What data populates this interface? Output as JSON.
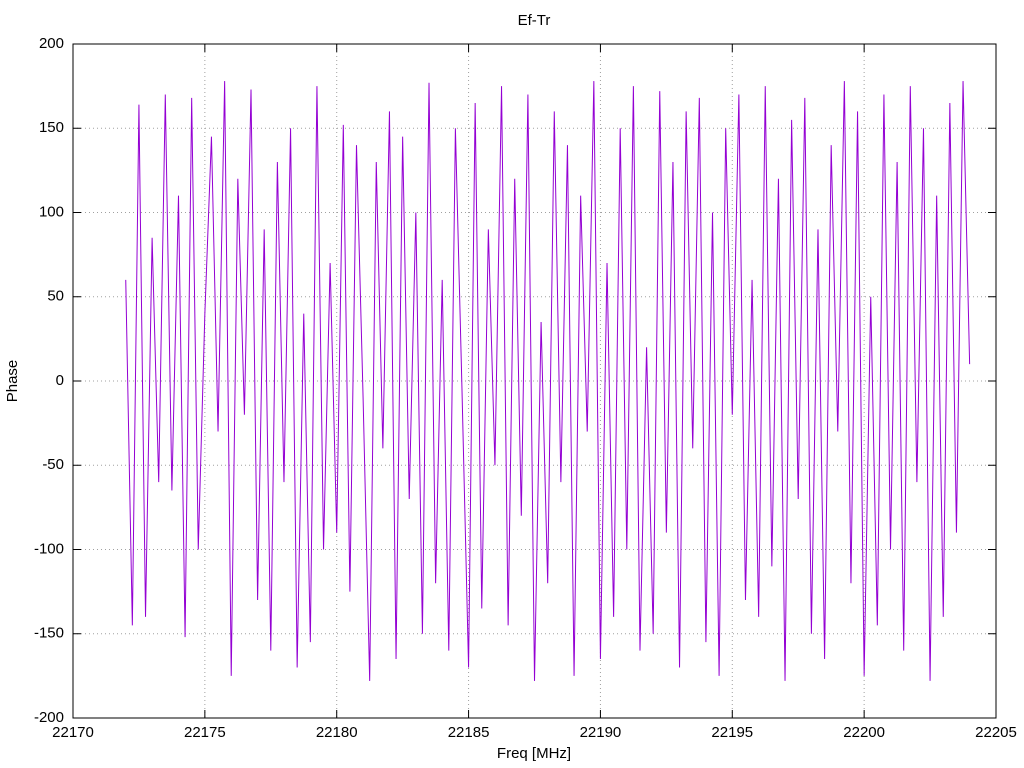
{
  "chart_data": {
    "type": "line",
    "title": "Ef-Tr",
    "x_label": "Freq [MHz]",
    "y_label": "Phase",
    "xlim": [
      22170,
      22205
    ],
    "xticks": [
      22170,
      22175,
      22180,
      22185,
      22190,
      22195,
      22200,
      22205
    ],
    "ylim": [
      -200,
      200
    ],
    "yticks": [
      -200,
      -150,
      -100,
      -50,
      0,
      50,
      100,
      150,
      200
    ],
    "grid": true,
    "x": [
      22172,
      22172.25,
      22172.5,
      22172.75,
      22173,
      22173.25,
      22173.5,
      22173.75,
      22174,
      22174.25,
      22174.5,
      22174.75,
      22175,
      22175.25,
      22175.5,
      22175.75,
      22176,
      22176.25,
      22176.5,
      22176.75,
      22177,
      22177.25,
      22177.5,
      22177.75,
      22178,
      22178.25,
      22178.5,
      22178.75,
      22179,
      22179.25,
      22179.5,
      22179.75,
      22180,
      22180.25,
      22180.5,
      22180.75,
      22181,
      22181.25,
      22181.5,
      22181.75,
      22182,
      22182.25,
      22182.5,
      22182.75,
      22183,
      22183.25,
      22183.5,
      22183.75,
      22184,
      22184.25,
      22184.5,
      22184.75,
      22185,
      22185.25,
      22185.5,
      22185.75,
      22186,
      22186.25,
      22186.5,
      22186.75,
      22187,
      22187.25,
      22187.5,
      22187.75,
      22188,
      22188.25,
      22188.5,
      22188.75,
      22189,
      22189.25,
      22189.5,
      22189.75,
      22190,
      22190.25,
      22190.5,
      22190.75,
      22191,
      22191.25,
      22191.5,
      22191.75,
      22192,
      22192.25,
      22192.5,
      22192.75,
      22193,
      22193.25,
      22193.5,
      22193.75,
      22194,
      22194.25,
      22194.5,
      22194.75,
      22195,
      22195.25,
      22195.5,
      22195.75,
      22196,
      22196.25,
      22196.5,
      22196.75,
      22197,
      22197.25,
      22197.5,
      22197.75,
      22198,
      22198.25,
      22198.5,
      22198.75,
      22199,
      22199.25,
      22199.5,
      22199.75,
      22200,
      22200.25,
      22200.5,
      22200.75,
      22201,
      22201.25,
      22201.5,
      22201.75,
      22202,
      22202.25,
      22202.5,
      22202.75,
      22203,
      22203.25,
      22203.5,
      22203.75,
      22204
    ],
    "series": [
      {
        "color": "#9400d3",
        "values": [
          60,
          -145,
          164,
          -140,
          85,
          -60,
          170,
          -65,
          110,
          -152,
          168,
          -100,
          40,
          145,
          -30,
          178,
          -175,
          120,
          -20,
          173,
          -130,
          90,
          -160,
          130,
          -60,
          150,
          -170,
          40,
          -155,
          175,
          -100,
          70,
          -90,
          152,
          -125,
          140,
          -10,
          -178,
          130,
          -40,
          160,
          -165,
          145,
          -70,
          100,
          -150,
          177,
          -120,
          60,
          -160,
          150,
          -5,
          -170,
          165,
          -135,
          90,
          -50,
          175,
          -145,
          120,
          -80,
          170,
          -178,
          35,
          -120,
          160,
          -60,
          140,
          -175,
          110,
          -30,
          178,
          -165,
          70,
          -140,
          150,
          -100,
          175,
          -160,
          20,
          -150,
          172,
          -90,
          130,
          -170,
          160,
          -40,
          168,
          -155,
          100,
          -175,
          150,
          -20,
          170,
          -130,
          60,
          -140,
          175,
          -110,
          120,
          -178,
          155,
          -70,
          168,
          -150,
          90,
          -165,
          140,
          -30,
          178,
          -120,
          160,
          -175,
          50,
          -145,
          170,
          -100,
          130,
          -160,
          175,
          -60,
          150,
          -178,
          110,
          -140,
          165,
          -90,
          178,
          10
        ]
      }
    ]
  }
}
